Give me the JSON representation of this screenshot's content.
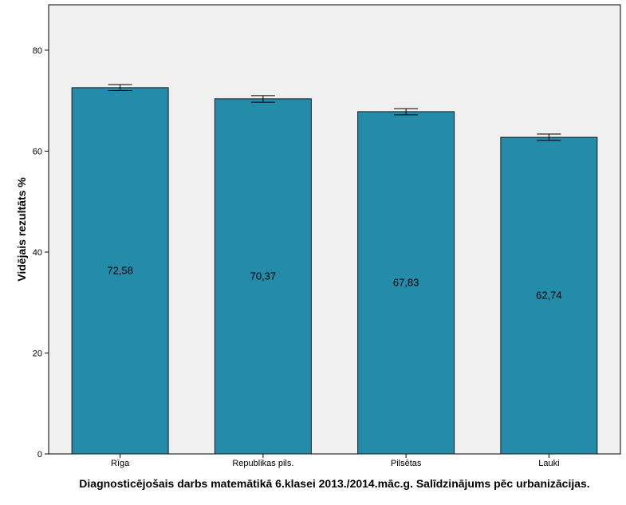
{
  "chart_data": {
    "type": "bar",
    "title": "",
    "xlabel": "Diagnosticējošais darbs matemātikā 6.klasei 2013./2014.māc.g. Salīdzinājums pēc urbanizācijas.",
    "ylabel": "Vidējais rezultāts %",
    "categories": [
      "Rīga",
      "Republikas pils.",
      "Pilsētas",
      "Lauki"
    ],
    "values": [
      72.58,
      70.37,
      67.83,
      62.74
    ],
    "value_labels": [
      "72,58",
      "70,37",
      "67,83",
      "62,74"
    ],
    "error_bars": [
      {
        "low": 72.0,
        "high": 73.2
      },
      {
        "low": 69.7,
        "high": 71.0
      },
      {
        "low": 67.2,
        "high": 68.4
      },
      {
        "low": 62.1,
        "high": 63.4
      }
    ],
    "ylim": [
      0,
      89
    ],
    "yticks": [
      0,
      20,
      40,
      60,
      80
    ],
    "ytick_labels": [
      "0",
      "20",
      "40",
      "60",
      "80"
    ],
    "grid": false,
    "legend": "none",
    "colors": {
      "bar_fill": "#248ba9",
      "bar_stroke": "#1a1a1a",
      "plot_background": "#f0f0f0",
      "axis": "#000000"
    }
  }
}
